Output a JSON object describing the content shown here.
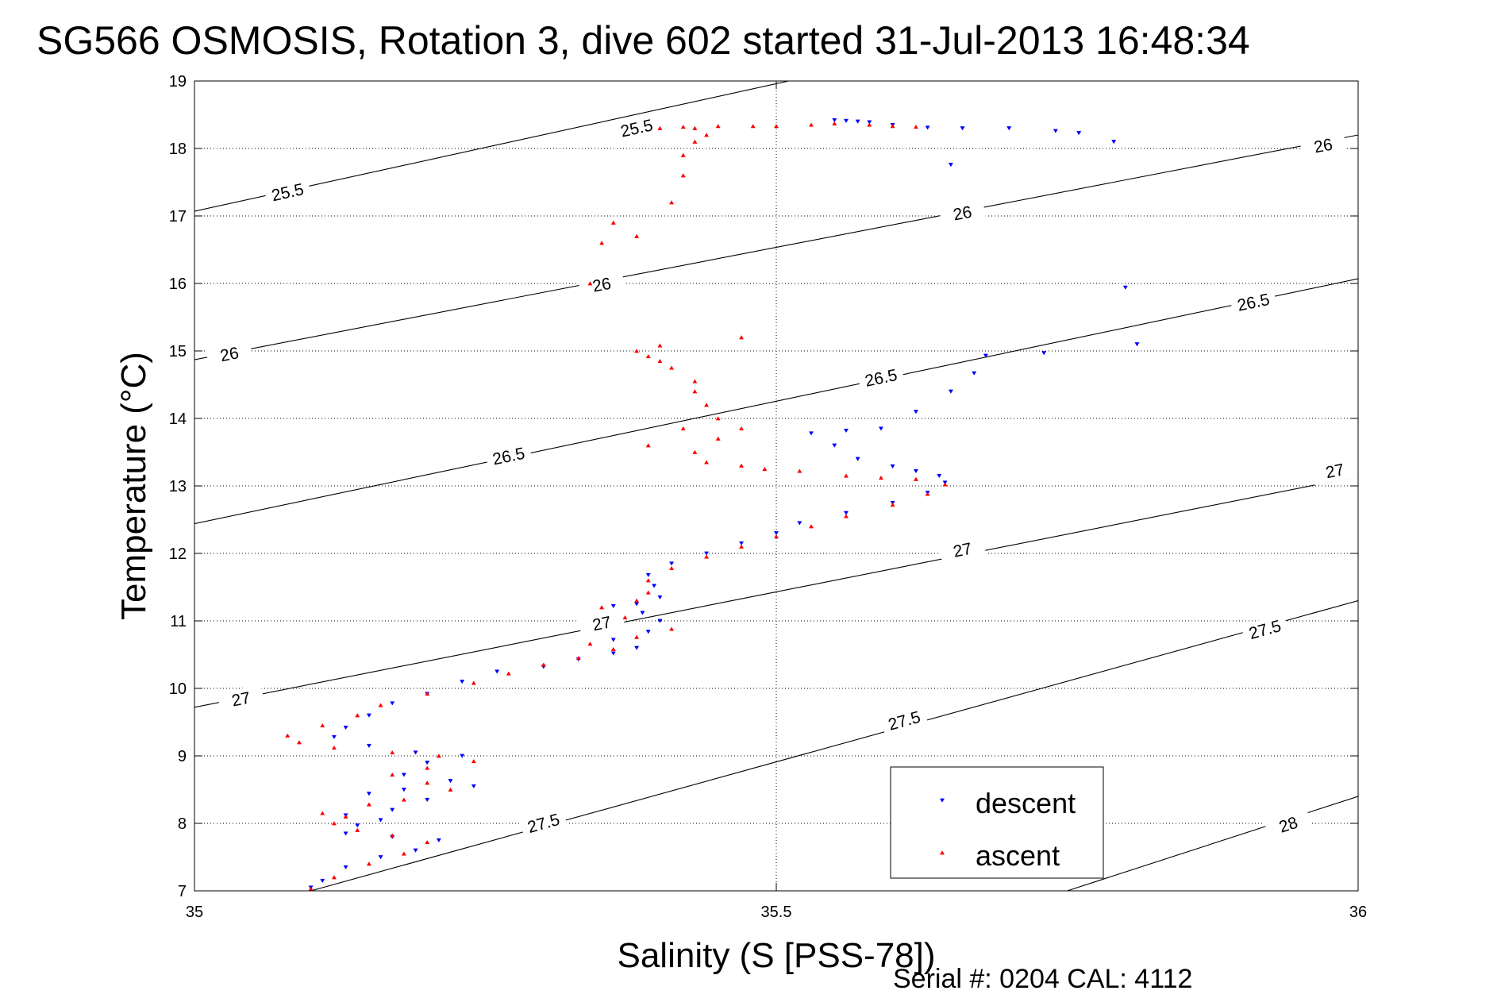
{
  "chart_data": {
    "type": "scatter",
    "title": "SG566 OSMOSIS, Rotation 3, dive 602 started 31-Jul-2013 16:48:34",
    "xlabel": "Salinity (S [PSS-78])",
    "ylabel": "Temperature (°C)",
    "xlim": [
      35,
      36
    ],
    "ylim": [
      7,
      19
    ],
    "xticks": [
      35,
      35.5,
      36
    ],
    "xtick_labels": [
      "35",
      "35.5",
      "36"
    ],
    "yticks": [
      7,
      8,
      9,
      10,
      11,
      12,
      13,
      14,
      15,
      16,
      17,
      18,
      19
    ],
    "ytick_labels": [
      "7",
      "8",
      "9",
      "10",
      "11",
      "12",
      "13",
      "14",
      "15",
      "16",
      "17",
      "18",
      "19"
    ],
    "grid": true,
    "legend_position": "bottom-right",
    "footer": "Serial #: 0204  CAL: 4112",
    "density_contours": [
      {
        "label": "25.5",
        "points": [
          [
            35,
            17.07
          ],
          [
            36,
            20.85
          ]
        ],
        "labels_at": [
          [
            35.08,
            17.35
          ],
          [
            35.38,
            18.3
          ]
        ]
      },
      {
        "label": "26",
        "points": [
          [
            35,
            14.87
          ],
          [
            36,
            18.2
          ]
        ],
        "labels_at": [
          [
            35.03,
            14.95
          ],
          [
            35.35,
            15.98
          ],
          [
            35.66,
            17.04
          ],
          [
            35.97,
            18.04
          ]
        ]
      },
      {
        "label": "26.5",
        "points": [
          [
            35,
            12.44
          ],
          [
            36,
            16.07
          ]
        ],
        "labels_at": [
          [
            35.27,
            13.44
          ],
          [
            35.59,
            14.6
          ],
          [
            35.91,
            15.72
          ]
        ]
      },
      {
        "label": "27",
        "points": [
          [
            35,
            9.72
          ],
          [
            36,
            13.14
          ]
        ],
        "labels_at": [
          [
            35.04,
            9.84
          ],
          [
            35.35,
            10.96
          ],
          [
            35.66,
            12.05
          ],
          [
            35.98,
            13.22
          ]
        ]
      },
      {
        "label": "27.5",
        "points": [
          [
            35.1,
            7
          ],
          [
            36,
            11.3
          ]
        ],
        "labels_at": [
          [
            35.3,
            8.0
          ],
          [
            35.61,
            9.52
          ],
          [
            35.92,
            10.87
          ]
        ]
      },
      {
        "label": "28",
        "points": [
          [
            35.75,
            7
          ],
          [
            36,
            8.4
          ]
        ],
        "labels_at": [
          [
            35.94,
            7.98
          ]
        ]
      }
    ],
    "series": [
      {
        "name": "descent",
        "marker": "triangle-down",
        "color": "#0000ff",
        "points": [
          [
            35.55,
            18.42
          ],
          [
            35.56,
            18.41
          ],
          [
            35.57,
            18.4
          ],
          [
            35.58,
            18.39
          ],
          [
            35.6,
            18.35
          ],
          [
            35.63,
            18.31
          ],
          [
            35.66,
            18.3
          ],
          [
            35.7,
            18.3
          ],
          [
            35.74,
            18.26
          ],
          [
            35.76,
            18.23
          ],
          [
            35.79,
            18.1
          ],
          [
            35.65,
            17.76
          ],
          [
            35.8,
            15.94
          ],
          [
            35.81,
            15.1
          ],
          [
            35.73,
            14.97
          ],
          [
            35.68,
            14.93
          ],
          [
            35.67,
            14.67
          ],
          [
            35.65,
            14.4
          ],
          [
            35.62,
            14.1
          ],
          [
            35.59,
            13.85
          ],
          [
            35.56,
            13.82
          ],
          [
            35.53,
            13.78
          ],
          [
            35.55,
            13.6
          ],
          [
            35.57,
            13.4
          ],
          [
            35.6,
            13.29
          ],
          [
            35.62,
            13.22
          ],
          [
            35.64,
            13.15
          ],
          [
            35.645,
            13.05
          ],
          [
            35.63,
            12.9
          ],
          [
            35.6,
            12.75
          ],
          [
            35.56,
            12.6
          ],
          [
            35.52,
            12.45
          ],
          [
            35.5,
            12.3
          ],
          [
            35.47,
            12.15
          ],
          [
            35.44,
            12.0
          ],
          [
            35.41,
            11.85
          ],
          [
            35.39,
            11.68
          ],
          [
            35.395,
            11.52
          ],
          [
            35.4,
            11.35
          ],
          [
            35.38,
            11.25
          ],
          [
            35.36,
            11.22
          ],
          [
            35.385,
            11.12
          ],
          [
            35.4,
            11.0
          ],
          [
            35.39,
            10.84
          ],
          [
            35.36,
            10.72
          ],
          [
            35.38,
            10.6
          ],
          [
            35.36,
            10.52
          ],
          [
            35.33,
            10.43
          ],
          [
            35.3,
            10.32
          ],
          [
            35.26,
            10.25
          ],
          [
            35.23,
            10.1
          ],
          [
            35.2,
            9.92
          ],
          [
            35.17,
            9.78
          ],
          [
            35.15,
            9.6
          ],
          [
            35.13,
            9.42
          ],
          [
            35.12,
            9.28
          ],
          [
            35.15,
            9.15
          ],
          [
            35.19,
            9.05
          ],
          [
            35.23,
            9.0
          ],
          [
            35.2,
            8.9
          ],
          [
            35.18,
            8.72
          ],
          [
            35.22,
            8.63
          ],
          [
            35.24,
            8.55
          ],
          [
            35.18,
            8.5
          ],
          [
            35.15,
            8.44
          ],
          [
            35.2,
            8.35
          ],
          [
            35.17,
            8.2
          ],
          [
            35.13,
            8.12
          ],
          [
            35.16,
            8.05
          ],
          [
            35.14,
            7.97
          ],
          [
            35.13,
            7.85
          ],
          [
            35.17,
            7.8
          ],
          [
            35.21,
            7.75
          ],
          [
            35.19,
            7.6
          ],
          [
            35.16,
            7.5
          ],
          [
            35.13,
            7.35
          ],
          [
            35.11,
            7.15
          ],
          [
            35.1,
            7.05
          ]
        ]
      },
      {
        "name": "ascent",
        "marker": "triangle-up",
        "color": "#ff0000",
        "points": [
          [
            35.1,
            7.03
          ],
          [
            35.12,
            7.2
          ],
          [
            35.15,
            7.4
          ],
          [
            35.18,
            7.55
          ],
          [
            35.2,
            7.72
          ],
          [
            35.17,
            7.82
          ],
          [
            35.14,
            7.9
          ],
          [
            35.12,
            8.0
          ],
          [
            35.13,
            8.1
          ],
          [
            35.11,
            8.15
          ],
          [
            35.15,
            8.28
          ],
          [
            35.18,
            8.35
          ],
          [
            35.22,
            8.5
          ],
          [
            35.2,
            8.6
          ],
          [
            35.17,
            8.72
          ],
          [
            35.2,
            8.82
          ],
          [
            35.24,
            8.92
          ],
          [
            35.21,
            9.0
          ],
          [
            35.17,
            9.05
          ],
          [
            35.12,
            9.12
          ],
          [
            35.09,
            9.2
          ],
          [
            35.08,
            9.3
          ],
          [
            35.11,
            9.45
          ],
          [
            35.14,
            9.6
          ],
          [
            35.16,
            9.75
          ],
          [
            35.2,
            9.92
          ],
          [
            35.24,
            10.08
          ],
          [
            35.27,
            10.22
          ],
          [
            35.3,
            10.35
          ],
          [
            35.33,
            10.45
          ],
          [
            35.36,
            10.58
          ],
          [
            35.34,
            10.66
          ],
          [
            35.38,
            10.76
          ],
          [
            35.41,
            10.88
          ],
          [
            35.37,
            11.05
          ],
          [
            35.35,
            11.2
          ],
          [
            35.38,
            11.3
          ],
          [
            35.39,
            11.42
          ],
          [
            35.39,
            11.6
          ],
          [
            35.41,
            11.78
          ],
          [
            35.44,
            11.95
          ],
          [
            35.47,
            12.1
          ],
          [
            35.5,
            12.25
          ],
          [
            35.53,
            12.4
          ],
          [
            35.56,
            12.55
          ],
          [
            35.6,
            12.72
          ],
          [
            35.63,
            12.88
          ],
          [
            35.645,
            13.02
          ],
          [
            35.62,
            13.1
          ],
          [
            35.59,
            13.12
          ],
          [
            35.56,
            13.15
          ],
          [
            35.52,
            13.22
          ],
          [
            35.49,
            13.25
          ],
          [
            35.47,
            13.3
          ],
          [
            35.44,
            13.35
          ],
          [
            35.43,
            13.5
          ],
          [
            35.45,
            13.7
          ],
          [
            35.47,
            13.85
          ],
          [
            35.45,
            14.0
          ],
          [
            35.44,
            14.2
          ],
          [
            35.43,
            14.4
          ],
          [
            35.47,
            15.2
          ],
          [
            35.4,
            15.08
          ],
          [
            35.39,
            14.92
          ],
          [
            35.38,
            15.0
          ],
          [
            35.4,
            14.85
          ],
          [
            35.41,
            14.75
          ],
          [
            35.43,
            14.55
          ],
          [
            35.42,
            13.85
          ],
          [
            35.39,
            13.6
          ],
          [
            35.34,
            16.0
          ],
          [
            35.41,
            17.2
          ],
          [
            35.36,
            16.9
          ],
          [
            35.38,
            16.7
          ],
          [
            35.35,
            16.6
          ],
          [
            35.42,
            17.6
          ],
          [
            35.42,
            17.9
          ],
          [
            35.43,
            18.1
          ],
          [
            35.44,
            18.2
          ],
          [
            35.43,
            18.3
          ],
          [
            35.45,
            18.33
          ],
          [
            35.48,
            18.33
          ],
          [
            35.5,
            18.33
          ],
          [
            35.53,
            18.35
          ],
          [
            35.55,
            18.37
          ],
          [
            35.58,
            18.35
          ],
          [
            35.6,
            18.33
          ],
          [
            35.62,
            18.32
          ],
          [
            35.4,
            18.3
          ],
          [
            35.42,
            18.32
          ]
        ]
      }
    ]
  }
}
